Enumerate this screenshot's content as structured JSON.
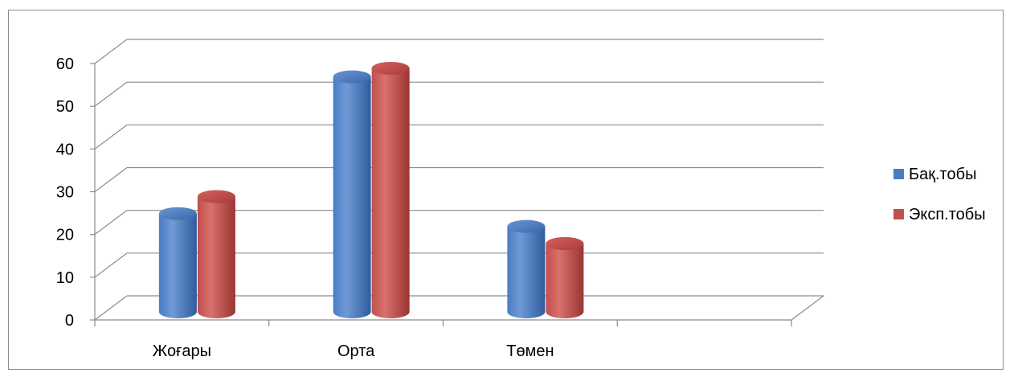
{
  "chart_data": {
    "type": "bar",
    "style": "3d-cylinder",
    "categories": [
      "Жоғары",
      "Орта",
      "Төмен"
    ],
    "series": [
      {
        "name": "Бақ.тобы",
        "values": [
          23,
          55,
          20
        ],
        "color": "#4a7cc4"
      },
      {
        "name": "Эксп.тобы",
        "values": [
          27,
          57,
          16
        ],
        "color": "#c0504d"
      }
    ],
    "ylim": [
      0,
      60
    ],
    "yticks": [
      "0",
      "10",
      "20",
      "30",
      "40",
      "50",
      "60"
    ],
    "grid": true,
    "legend_position": "right",
    "title": "",
    "xlabel": "",
    "ylabel": ""
  }
}
